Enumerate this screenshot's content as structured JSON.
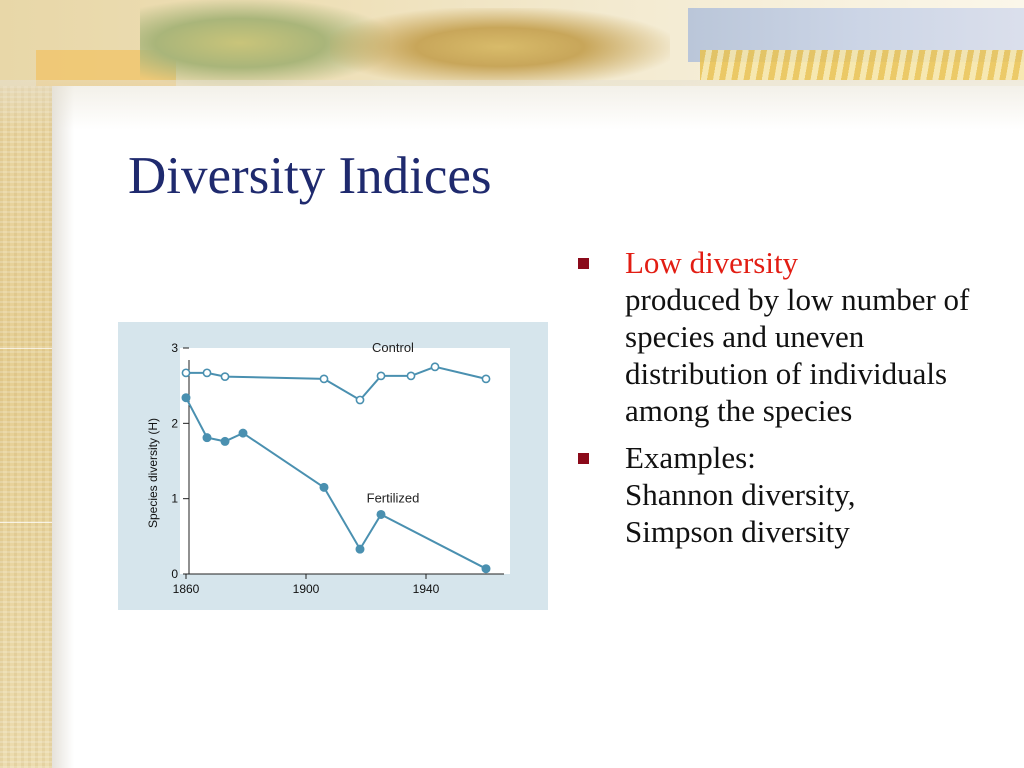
{
  "slide": {
    "title": "Diversity Indices"
  },
  "bullets": [
    {
      "highlight": "Low diversity",
      "text": "produced by low number of species and uneven distribution of individuals among the species"
    },
    {
      "line1": "Examples:",
      "line2": "Shannon diversity,",
      "line3": "Simpson diversity"
    }
  ],
  "colors": {
    "title": "#1f2a6e",
    "highlight": "#e21d13",
    "bullet_marker": "#8b0a1a",
    "series": "#4a90b0",
    "panel": "#d6e5ec"
  },
  "chart_data": {
    "type": "line",
    "ylabel": "Species diversity (H)",
    "xlabel": "",
    "xlim": [
      1858,
      1968
    ],
    "ylim": [
      0,
      3
    ],
    "xticks": [
      1860,
      1900,
      1940
    ],
    "yticks": [
      0,
      1,
      2,
      3
    ],
    "grid": false,
    "series": [
      {
        "name": "Control",
        "marker": "open-circle",
        "x": [
          1860,
          1867,
          1873,
          1906,
          1918,
          1925,
          1935,
          1943,
          1960
        ],
        "y": [
          2.67,
          2.67,
          2.62,
          2.59,
          2.31,
          2.63,
          2.63,
          2.75,
          2.59
        ]
      },
      {
        "name": "Fertilized",
        "marker": "filled-circle",
        "x": [
          1860,
          1867,
          1873,
          1879,
          1906,
          1918,
          1925,
          1960
        ],
        "y": [
          2.34,
          1.81,
          1.76,
          1.87,
          1.15,
          0.33,
          0.79,
          0.07
        ]
      }
    ]
  }
}
